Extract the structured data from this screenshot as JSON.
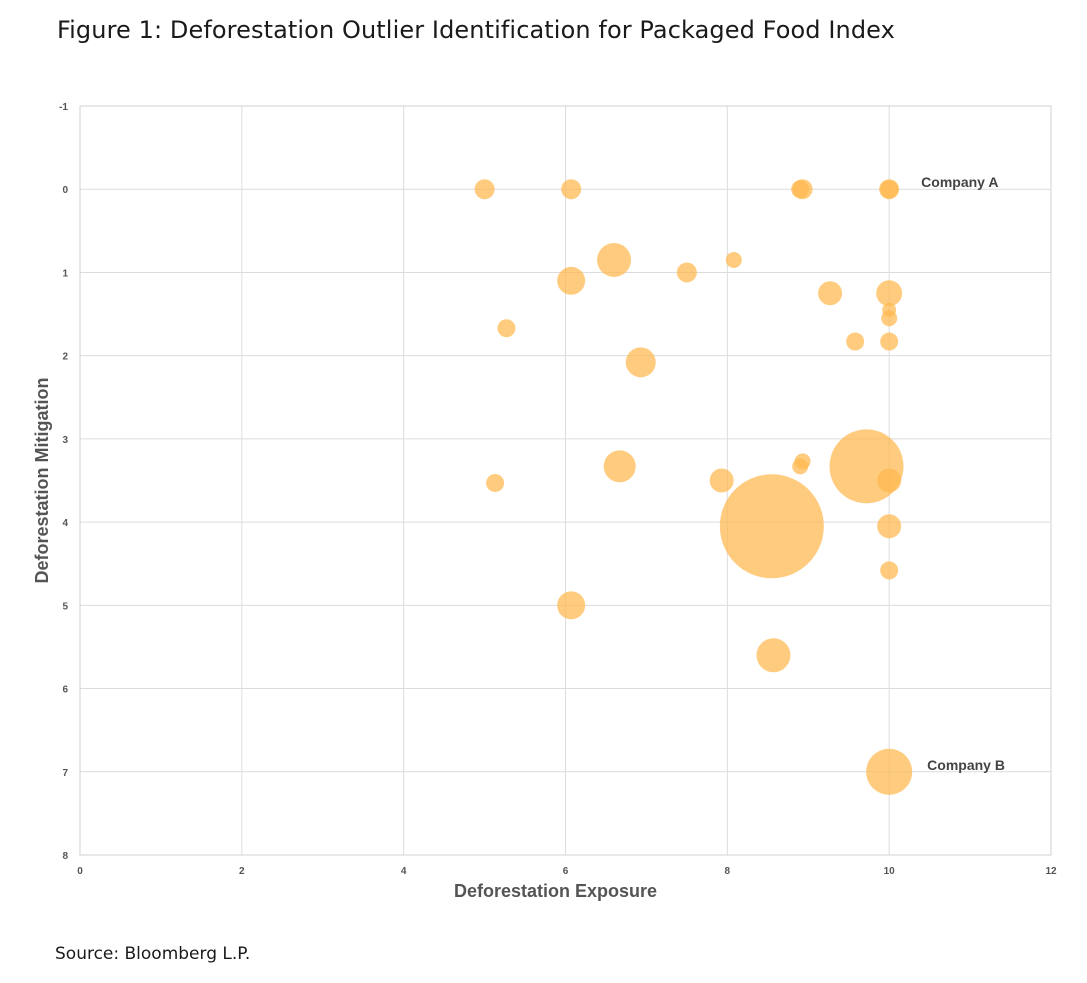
{
  "figure": {
    "title": "Figure 1: Deforestation Outlier Identification for Packaged Food Index",
    "source": "Source: Bloomberg L.P."
  },
  "chart_data": {
    "type": "scatter",
    "variant": "bubble",
    "title": "Figure 1: Deforestation Outlier Identification for Packaged Food Index",
    "xlabel": "Deforestation Exposure",
    "ylabel": "Deforestation Mitigation",
    "xlim": [
      0,
      12
    ],
    "ylim": [
      -1,
      8
    ],
    "y_axis_inverted": true,
    "x_ticks": [
      "0",
      "2",
      "4",
      "6",
      "8",
      "10",
      "12"
    ],
    "y_ticks": [
      "-1",
      "0",
      "1",
      "2",
      "3",
      "4",
      "5",
      "6",
      "7",
      "8"
    ],
    "grid": true,
    "bubble_color": "#FFB84D",
    "points": [
      {
        "x": 5.0,
        "y": 0.0,
        "size": 10
      },
      {
        "x": 6.07,
        "y": 0.0,
        "size": 10
      },
      {
        "x": 8.9,
        "y": 0.0,
        "size": 9
      },
      {
        "x": 8.93,
        "y": 0.0,
        "size": 10
      },
      {
        "x": 10.0,
        "y": 0.0,
        "size": 10
      },
      {
        "x": 10.0,
        "y": 0.0,
        "size": 9
      },
      {
        "x": 6.6,
        "y": 0.85,
        "size": 17
      },
      {
        "x": 8.08,
        "y": 0.85,
        "size": 8
      },
      {
        "x": 7.5,
        "y": 1.0,
        "size": 10
      },
      {
        "x": 6.07,
        "y": 1.1,
        "size": 14
      },
      {
        "x": 9.27,
        "y": 1.25,
        "size": 12
      },
      {
        "x": 10.0,
        "y": 1.25,
        "size": 13
      },
      {
        "x": 10.0,
        "y": 1.45,
        "size": 7
      },
      {
        "x": 10.0,
        "y": 1.55,
        "size": 8
      },
      {
        "x": 5.27,
        "y": 1.67,
        "size": 9
      },
      {
        "x": 9.58,
        "y": 1.83,
        "size": 9
      },
      {
        "x": 10.0,
        "y": 1.83,
        "size": 9
      },
      {
        "x": 6.93,
        "y": 2.08,
        "size": 15
      },
      {
        "x": 6.67,
        "y": 3.33,
        "size": 16
      },
      {
        "x": 8.9,
        "y": 3.33,
        "size": 8
      },
      {
        "x": 8.93,
        "y": 3.27,
        "size": 8
      },
      {
        "x": 9.72,
        "y": 3.33,
        "size": 37
      },
      {
        "x": 5.13,
        "y": 3.53,
        "size": 9
      },
      {
        "x": 7.93,
        "y": 3.5,
        "size": 12
      },
      {
        "x": 10.0,
        "y": 3.5,
        "size": 12
      },
      {
        "x": 8.55,
        "y": 4.05,
        "size": 52
      },
      {
        "x": 10.0,
        "y": 4.05,
        "size": 12
      },
      {
        "x": 10.0,
        "y": 4.58,
        "size": 9
      },
      {
        "x": 6.07,
        "y": 5.0,
        "size": 14
      },
      {
        "x": 8.57,
        "y": 5.6,
        "size": 17
      },
      {
        "x": 10.0,
        "y": 7.0,
        "size": 23
      }
    ],
    "annotations": [
      {
        "text": "Company A",
        "x": 10.0,
        "y": 0.0
      },
      {
        "text": "Company B",
        "x": 10.0,
        "y": 7.0
      }
    ]
  }
}
